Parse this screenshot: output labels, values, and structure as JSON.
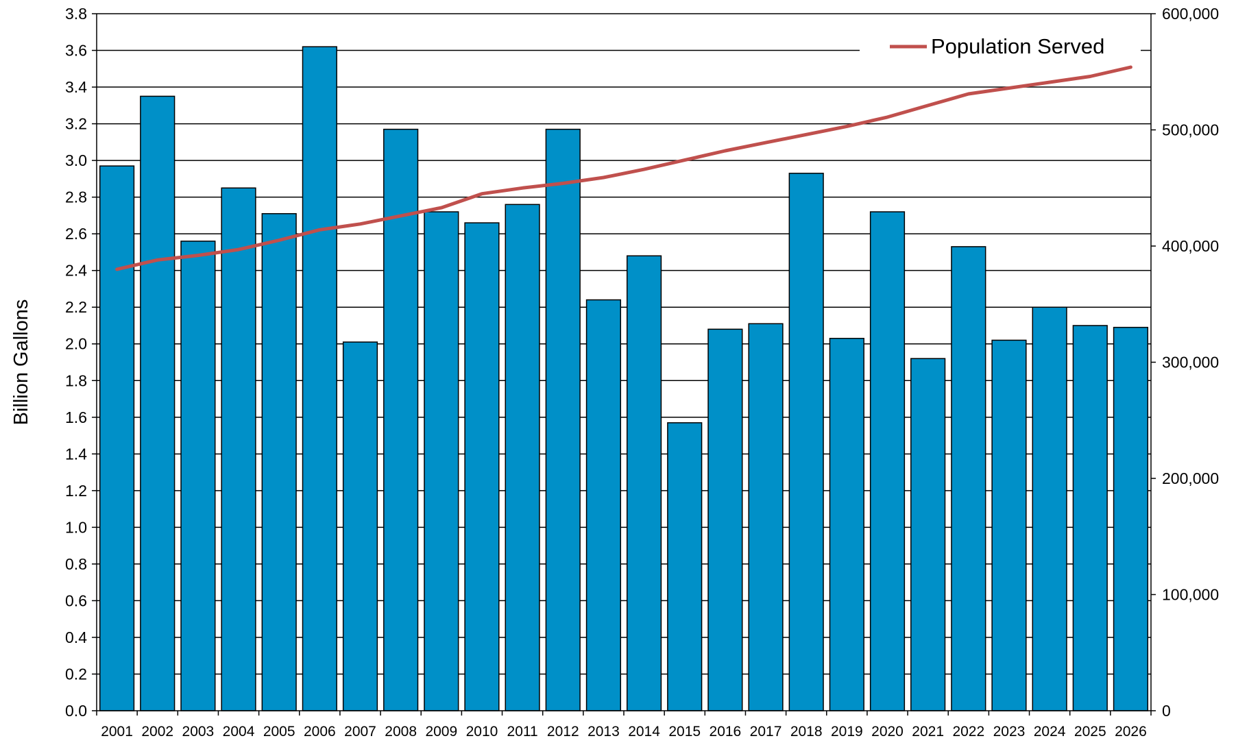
{
  "chart_data": {
    "type": "bar",
    "title": "",
    "xlabel": "",
    "ylabel": "Billion Gallons",
    "y2label": "",
    "ylim": [
      0,
      3.8
    ],
    "y2lim": [
      0,
      600000
    ],
    "yticks": [
      "0.0",
      "0.2",
      "0.4",
      "0.6",
      "0.8",
      "1.0",
      "1.2",
      "1.4",
      "1.6",
      "1.8",
      "2.0",
      "2.2",
      "2.4",
      "2.6",
      "2.8",
      "3.0",
      "3.2",
      "3.4",
      "3.6",
      "3.8"
    ],
    "y2ticks": [
      "0",
      "100,000",
      "200,000",
      "300,000",
      "400,000",
      "500,000",
      "600,000"
    ],
    "grid": true,
    "legend_position": "top-right",
    "categories": [
      "2001",
      "2002",
      "2003",
      "2004",
      "2005",
      "2006",
      "2007",
      "2008",
      "2009",
      "2010",
      "2011",
      "2012",
      "2013",
      "2014",
      "2015",
      "2016",
      "2017",
      "2018",
      "2019",
      "2020",
      "2021",
      "2022",
      "2023",
      "2024",
      "2025",
      "2026"
    ],
    "series": [
      {
        "type": "bar",
        "axis": "left",
        "color": "#0090c8",
        "values": [
          2.97,
          3.35,
          2.56,
          2.85,
          2.71,
          3.62,
          2.01,
          3.17,
          2.72,
          2.66,
          2.76,
          3.17,
          2.24,
          2.48,
          1.57,
          2.08,
          2.11,
          2.93,
          2.03,
          2.72,
          1.92,
          2.53,
          2.02,
          2.2,
          2.1,
          2.09
        ]
      },
      {
        "name": "Population Served",
        "type": "line",
        "axis": "right",
        "color": "#c0504d",
        "values": [
          380000,
          388000,
          392000,
          397000,
          405000,
          414000,
          419000,
          426000,
          433000,
          445000,
          450000,
          454000,
          459000,
          466000,
          474000,
          482000,
          489000,
          496000,
          503000,
          511000,
          521000,
          531000,
          536000,
          541000,
          546000,
          554000
        ]
      }
    ]
  }
}
